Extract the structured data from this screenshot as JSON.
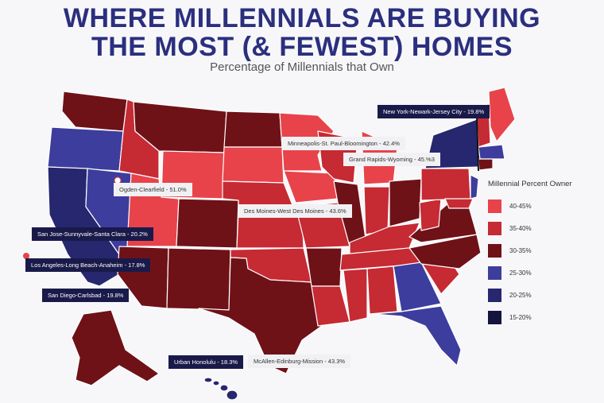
{
  "title_line1": "WHERE MILLENNIALS ARE BUYING",
  "title_line2": "THE MOST (& FEWEST) HOMES",
  "subtitle": "Percentage of Millennials that Own",
  "legend": {
    "title": "Millennial Percent Owner",
    "items": [
      {
        "label": "40-45%",
        "color": "#e8434a"
      },
      {
        "label": "35-40%",
        "color": "#c62a33"
      },
      {
        "label": "30-35%",
        "color": "#6e1218"
      },
      {
        "label": "25-30%",
        "color": "#3d3d9e"
      },
      {
        "label": "20-25%",
        "color": "#272770"
      },
      {
        "label": "15-20%",
        "color": "#14143f"
      }
    ]
  },
  "cities": [
    {
      "id": "nyc",
      "label": "New York-Newark-Jersey City - 19.8%",
      "style": "dark"
    },
    {
      "id": "msp",
      "label": "Minneapolis-St. Paul-Bloomington - 42.4%",
      "style": "light"
    },
    {
      "id": "grr",
      "label": "Grand Rapids-Wyoming - 45.%3",
      "style": "light"
    },
    {
      "id": "ogd",
      "label": "Ogden-Clearfield - 51.0%",
      "style": "light"
    },
    {
      "id": "dsm",
      "label": "Des Moines-West Des Moines - 43.6%",
      "style": "light"
    },
    {
      "id": "sjc",
      "label": "San Jose-Sunnyvale-Santa Clara - 20.2%",
      "style": "dark"
    },
    {
      "id": "lax",
      "label": "Los Angeles-Long Beach-Anaheim - 17.8%",
      "style": "dark"
    },
    {
      "id": "san",
      "label": "San Diego-Carlsbad - 19.8%",
      "style": "dark"
    },
    {
      "id": "hnl",
      "label": "Urban Honolulu - 18.3%",
      "style": "dark"
    },
    {
      "id": "mfe",
      "label": "McAllen-Edinburg-Mission - 43.3%",
      "style": "light"
    }
  ]
}
